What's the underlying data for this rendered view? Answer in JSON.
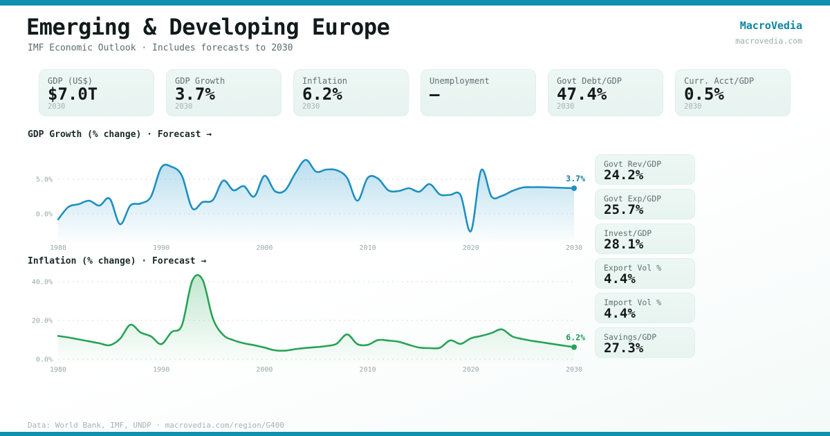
{
  "page": {
    "title": "Emerging & Developing Europe",
    "subtitle": "IMF Economic Outlook · Includes forecasts to 2030",
    "brand": "MacroVedia",
    "brand_url": "macrovedia.com",
    "footer": "Data: World Bank, IMF, UNDP · macrovedia.com/region/G400"
  },
  "colors": {
    "accent_bar": "#0c92ae",
    "brand": "#0e84a2",
    "gdp_line": "#1e8fc0",
    "inflation_line": "#27a257",
    "card_background": "#e9f5f1"
  },
  "stat_cards": [
    {
      "label": "GDP (US$)",
      "value": "$7.0T",
      "year": "2030"
    },
    {
      "label": "GDP Growth",
      "value": "3.7%",
      "year": "2030"
    },
    {
      "label": "Inflation",
      "value": "6.2%",
      "year": "2030"
    },
    {
      "label": "Unemployment",
      "value": "—",
      "year": ""
    },
    {
      "label": "Govt Debt/GDP",
      "value": "47.4%",
      "year": "2030"
    },
    {
      "label": "Curr. Acct/GDP",
      "value": "0.5%",
      "year": "2030"
    }
  ],
  "side_stats": [
    {
      "label": "Govt Rev/GDP",
      "value": "24.2%"
    },
    {
      "label": "Govt Exp/GDP",
      "value": "25.7%"
    },
    {
      "label": "Invest/GDP",
      "value": "28.1%"
    },
    {
      "label": "Export Vol %",
      "value": "4.4%"
    },
    {
      "label": "Import Vol %",
      "value": "4.4%"
    },
    {
      "label": "Savings/GDP",
      "value": "27.3%"
    }
  ],
  "chart_data": [
    {
      "type": "area",
      "title": "GDP Growth (% change) · Forecast →",
      "x_start": 1980,
      "x_end": 2030,
      "x_ticks": [
        1980,
        1990,
        2000,
        2010,
        2020,
        2030
      ],
      "y_ticks": [
        {
          "value": 5,
          "label": "5.0%"
        },
        {
          "value": 0,
          "label": "0.0%"
        }
      ],
      "ylim": [
        -3.5,
        8.6
      ],
      "values": [
        -0.8,
        1.0,
        1.4,
        1.9,
        1.2,
        2.2,
        -1.5,
        1.2,
        1.5,
        2.5,
        6.7,
        6.8,
        5.5,
        0.8,
        1.7,
        2.0,
        4.8,
        3.4,
        4.0,
        2.5,
        5.5,
        3.3,
        3.4,
        5.9,
        7.8,
        6.1,
        6.4,
        6.3,
        5.2,
        1.9,
        5.2,
        5.1,
        3.4,
        3.3,
        3.7,
        3.2,
        4.3,
        2.8,
        2.75,
        2.7,
        -2.5,
        6.3,
        2.5,
        2.6,
        3.3,
        3.8,
        3.85,
        3.85,
        3.8,
        3.75,
        3.7
      ],
      "end_label": "3.7%",
      "color": "#1e8fc0",
      "fill": "#7fc3e0",
      "label_color": "#15789f",
      "grid": true,
      "legend": "none"
    },
    {
      "type": "area",
      "title": "Inflation (% change) · Forecast →",
      "x_start": 1980,
      "x_end": 2030,
      "x_ticks": [
        1980,
        1990,
        2000,
        2010,
        2020,
        2030
      ],
      "y_ticks": [
        {
          "value": 40,
          "label": "40.0%"
        },
        {
          "value": 20,
          "label": "20.0%"
        },
        {
          "value": 0,
          "label": "0.0%"
        }
      ],
      "ylim": [
        0,
        43
      ],
      "values": [
        12.0,
        11.2,
        10.2,
        9.2,
        8.2,
        7.2,
        10.5,
        17.8,
        13.8,
        11.8,
        7.8,
        14.0,
        17.5,
        40.5,
        41.0,
        21.0,
        12.5,
        9.8,
        8.2,
        7.2,
        6.0,
        4.6,
        4.4,
        5.2,
        5.8,
        6.2,
        6.8,
        8.0,
        12.8,
        7.8,
        7.4,
        9.9,
        9.6,
        9.0,
        7.4,
        6.0,
        5.7,
        5.9,
        9.7,
        7.9,
        10.8,
        12.0,
        13.5,
        15.4,
        11.8,
        10.4,
        9.4,
        8.6,
        7.8,
        7.0,
        6.2
      ],
      "end_label": "6.2%",
      "color": "#27a257",
      "fill": "#8fd4a8",
      "label_color": "#1e9650",
      "grid": true,
      "legend": "none"
    }
  ]
}
